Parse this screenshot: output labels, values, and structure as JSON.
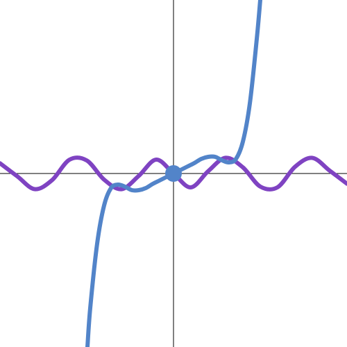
{
  "chart_data": {
    "type": "line",
    "title": "",
    "xlabel": "",
    "ylabel": "",
    "xlim": [
      -2.5,
      2.5
    ],
    "ylim": [
      -2.5,
      2.5
    ],
    "grid": false,
    "axes": true,
    "series": [
      {
        "color": "#7f43c2",
        "x": [
          -2.5,
          -2.25,
          -2.0,
          -1.75,
          -1.5,
          -1.25,
          -1.0,
          -0.75,
          -0.5,
          -0.25,
          0.0,
          0.25,
          0.5,
          0.75,
          1.0,
          1.25,
          1.5,
          1.75,
          2.0,
          2.25,
          2.5
        ],
        "y": [
          0.147,
          -0.041,
          -0.225,
          -0.096,
          0.198,
          0.188,
          -0.088,
          -0.226,
          -0.034,
          0.2,
          0.0,
          -0.2,
          0.034,
          0.226,
          0.088,
          -0.188,
          -0.198,
          0.096,
          0.225,
          0.041,
          -0.147
        ]
      },
      {
        "color": "#5284c9",
        "x": [
          -1.24,
          -1.2,
          -1.1,
          -1.0,
          -0.9,
          -0.8,
          -0.7,
          -0.6,
          -0.5,
          -0.4,
          -0.3,
          -0.2,
          -0.1,
          0.0,
          0.1,
          0.2,
          0.3,
          0.4,
          0.5,
          0.6,
          0.7,
          0.8,
          0.9,
          1.0,
          1.1,
          1.2,
          1.25
        ],
        "y": [
          -2.5,
          -1.94,
          -1.01,
          -0.46,
          -0.21,
          -0.16,
          -0.19,
          -0.24,
          -0.24,
          -0.21,
          -0.15,
          -0.1,
          -0.05,
          0.0,
          0.05,
          0.1,
          0.15,
          0.21,
          0.24,
          0.24,
          0.19,
          0.16,
          0.21,
          0.46,
          1.01,
          1.94,
          2.5
        ]
      }
    ],
    "highlighted_points": [
      {
        "x": 0,
        "y": 0,
        "color": "#5284c9"
      }
    ]
  }
}
